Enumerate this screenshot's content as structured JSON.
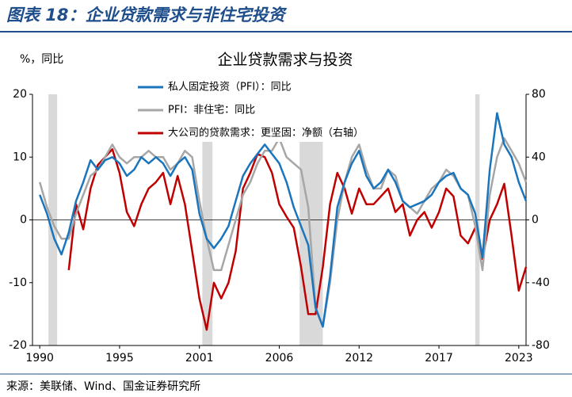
{
  "header": "图表 18：企业贷款需求与非住宅投资",
  "source": "来源：美联储、Wind、国金证券研究所",
  "chart_data": {
    "type": "line",
    "title": "企业贷款需求与投资",
    "y_label": "%，同比",
    "x": [
      1990,
      1990.5,
      1991,
      1991.5,
      1992,
      1992.5,
      1993,
      1993.5,
      1994,
      1994.5,
      1995,
      1995.5,
      1996,
      1996.5,
      1997,
      1997.5,
      1998,
      1998.5,
      1999,
      1999.5,
      2000,
      2000.5,
      2001,
      2001.5,
      2002,
      2002.5,
      2003,
      2003.5,
      2004,
      2004.5,
      2005,
      2005.5,
      2006,
      2006.5,
      2007,
      2007.5,
      2008,
      2008.5,
      2009,
      2009.5,
      2010,
      2010.5,
      2011,
      2011.5,
      2012,
      2012.5,
      2013,
      2013.5,
      2014,
      2014.5,
      2015,
      2015.5,
      2016,
      2016.5,
      2017,
      2017.5,
      2018,
      2018.5,
      2019,
      2019.5,
      2020,
      2020.5,
      2021,
      2021.5,
      2022,
      2022.5,
      2023,
      2023.5
    ],
    "series": [
      {
        "name": "私人固定投资（PFI）：同比",
        "color": "#1a75bc",
        "values": [
          4,
          1,
          -3,
          -5.5,
          -2,
          3,
          6,
          9.5,
          8,
          9.5,
          10,
          9,
          7,
          8,
          10,
          9,
          10,
          9,
          7,
          9,
          10,
          8,
          1,
          -3,
          -4.5,
          -3,
          -1,
          3,
          7,
          9,
          10.5,
          12,
          10.5,
          9,
          6,
          2,
          -1,
          -4,
          -14,
          -17,
          -9,
          2,
          6,
          9,
          11,
          7,
          5,
          6,
          8,
          6,
          3,
          2,
          2.5,
          3,
          4,
          6,
          7,
          7.5,
          5,
          4,
          1,
          -6,
          8,
          17,
          12,
          10,
          6,
          3
        ]
      },
      {
        "name": "PFI：非住宅：同比",
        "color": "#a6a6a6",
        "values": [
          6,
          2,
          -1,
          -3,
          -3,
          1,
          4,
          7,
          8,
          10,
          12,
          10,
          9,
          10,
          10,
          11,
          10,
          10,
          8,
          9,
          11,
          10,
          3,
          -3,
          -8,
          -8,
          -4,
          0,
          4,
          6,
          9,
          11,
          11,
          13,
          10,
          9,
          8,
          2,
          -14,
          -17,
          -10,
          0,
          6,
          10,
          12,
          8,
          5,
          5,
          8,
          7,
          3,
          2,
          1,
          3,
          5,
          6,
          8,
          7,
          5,
          4,
          -1,
          -8,
          4,
          10,
          13,
          11,
          9,
          6
        ]
      },
      {
        "name": "大公司的贷款需求：更坚固：净额（右轴）",
        "color": "#c00000",
        "axis": "y2",
        "values": [
          null,
          null,
          null,
          null,
          -32,
          10,
          -6,
          20,
          35,
          40,
          45,
          30,
          5,
          -4,
          10,
          20,
          24,
          30,
          10,
          28,
          10,
          -20,
          -50,
          -70,
          -40,
          -50,
          -40,
          -20,
          20,
          30,
          42,
          40,
          30,
          10,
          2,
          -5,
          -30,
          -60,
          -60,
          -30,
          10,
          30,
          20,
          4,
          20,
          10,
          10,
          15,
          20,
          5,
          10,
          -10,
          0,
          5,
          -5,
          5,
          20,
          15,
          -10,
          -15,
          -5,
          -25,
          0,
          10,
          23,
          -10,
          -45,
          -30
        ]
      }
    ],
    "recessions": [
      [
        1990.6,
        1991.2
      ],
      [
        2001.2,
        2001.9
      ],
      [
        2007.9,
        2009.5
      ],
      [
        2020.0,
        2020.3
      ]
    ],
    "xlim": [
      1989.5,
      2023.5
    ],
    "xticks": [
      1990,
      {
        "value": 1995.5,
        "label": "1995"
      },
      2001,
      {
        "value": 2006.5,
        "label": "2006"
      },
      2012,
      {
        "value": 2017.5,
        "label": "2017"
      },
      2023
    ],
    "ylim": [
      -20,
      20
    ],
    "yticks": [
      -20,
      -10,
      0,
      10,
      20
    ],
    "y2lim": [
      -80,
      80
    ],
    "y2ticks": [
      -80,
      -40,
      0,
      40,
      80
    ],
    "recession_color": "#d9d9d9"
  }
}
